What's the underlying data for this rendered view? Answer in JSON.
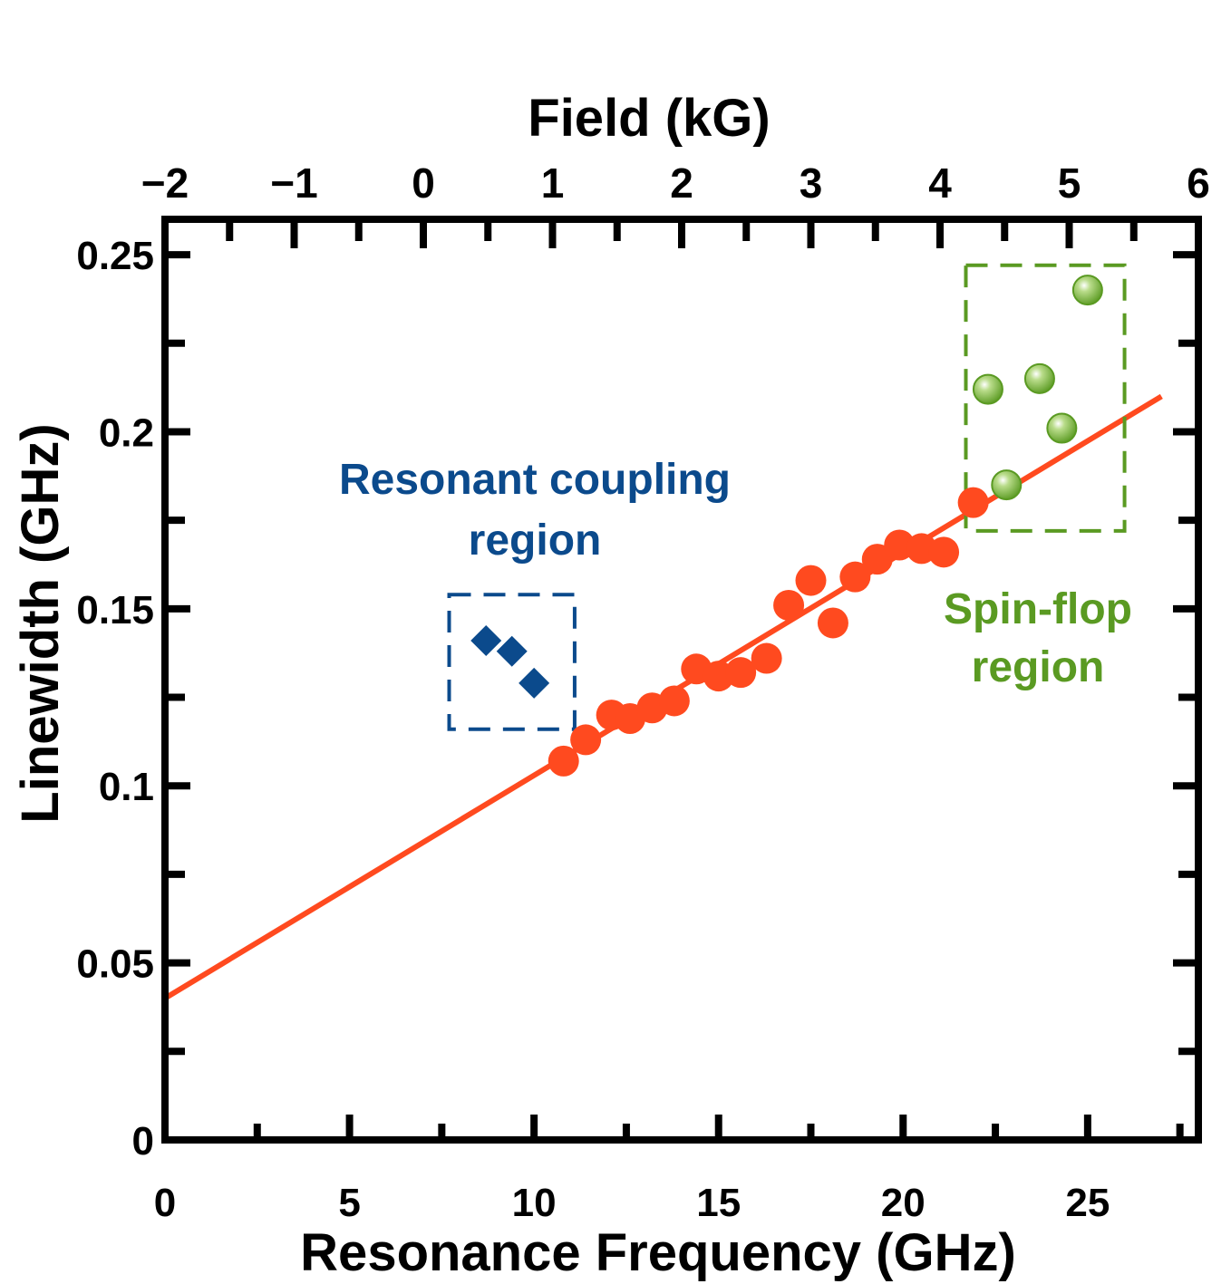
{
  "chart_data": {
    "type": "scatter",
    "xlabel": "Resonance Frequency (GHz)",
    "ylabel": "Linewidth (GHz)",
    "x2label": "Field (kG)",
    "xlim": [
      0,
      28
    ],
    "ylim": [
      0,
      0.26
    ],
    "x2lim": [
      -2,
      6
    ],
    "x_ticks": [
      "0",
      "5",
      "10",
      "15",
      "20",
      "25"
    ],
    "y_ticks": [
      "0",
      "0.05",
      "0.1",
      "0.15",
      "0.2",
      "0.25"
    ],
    "x2_ticks": [
      "−2",
      "−1",
      "0",
      "1",
      "2",
      "3",
      "4",
      "5",
      "6"
    ],
    "grid": false,
    "series": [
      {
        "marker": "circle",
        "color": "#ff4a1f",
        "points": [
          [
            10.8,
            0.107
          ],
          [
            11.4,
            0.113
          ],
          [
            12.1,
            0.12
          ],
          [
            12.6,
            0.119
          ],
          [
            13.2,
            0.122
          ],
          [
            13.8,
            0.124
          ],
          [
            14.4,
            0.133
          ],
          [
            15.0,
            0.131
          ],
          [
            15.6,
            0.132
          ],
          [
            16.3,
            0.136
          ],
          [
            16.9,
            0.151
          ],
          [
            17.5,
            0.158
          ],
          [
            18.1,
            0.146
          ],
          [
            18.7,
            0.159
          ],
          [
            19.3,
            0.164
          ],
          [
            19.9,
            0.168
          ],
          [
            20.5,
            0.167
          ],
          [
            21.1,
            0.166
          ],
          [
            21.9,
            0.18
          ]
        ]
      },
      {
        "marker": "diamond",
        "color": "#0b4a8c",
        "points": [
          [
            8.7,
            0.141
          ],
          [
            9.4,
            0.138
          ],
          [
            10.0,
            0.129
          ]
        ]
      },
      {
        "marker": "sphere",
        "color": "#5a9a22",
        "points": [
          [
            22.8,
            0.185
          ],
          [
            22.3,
            0.212
          ],
          [
            23.7,
            0.215
          ],
          [
            24.3,
            0.201
          ],
          [
            25.0,
            0.24
          ]
        ]
      }
    ],
    "fit_line": {
      "color": "#ff4a1f",
      "x": [
        0,
        27
      ],
      "y": [
        0.04,
        0.21
      ]
    },
    "regions": [
      {
        "label_lines": [
          "Resonant coupling",
          "region"
        ],
        "color": "#0b4a8c",
        "x": [
          7.7,
          11.1
        ],
        "y": [
          0.116,
          0.154
        ]
      },
      {
        "label_lines": [
          "Spin-flop",
          "region"
        ],
        "color": "#5a9a22",
        "x": [
          21.7,
          26.0
        ],
        "y": [
          0.172,
          0.247
        ]
      }
    ]
  }
}
